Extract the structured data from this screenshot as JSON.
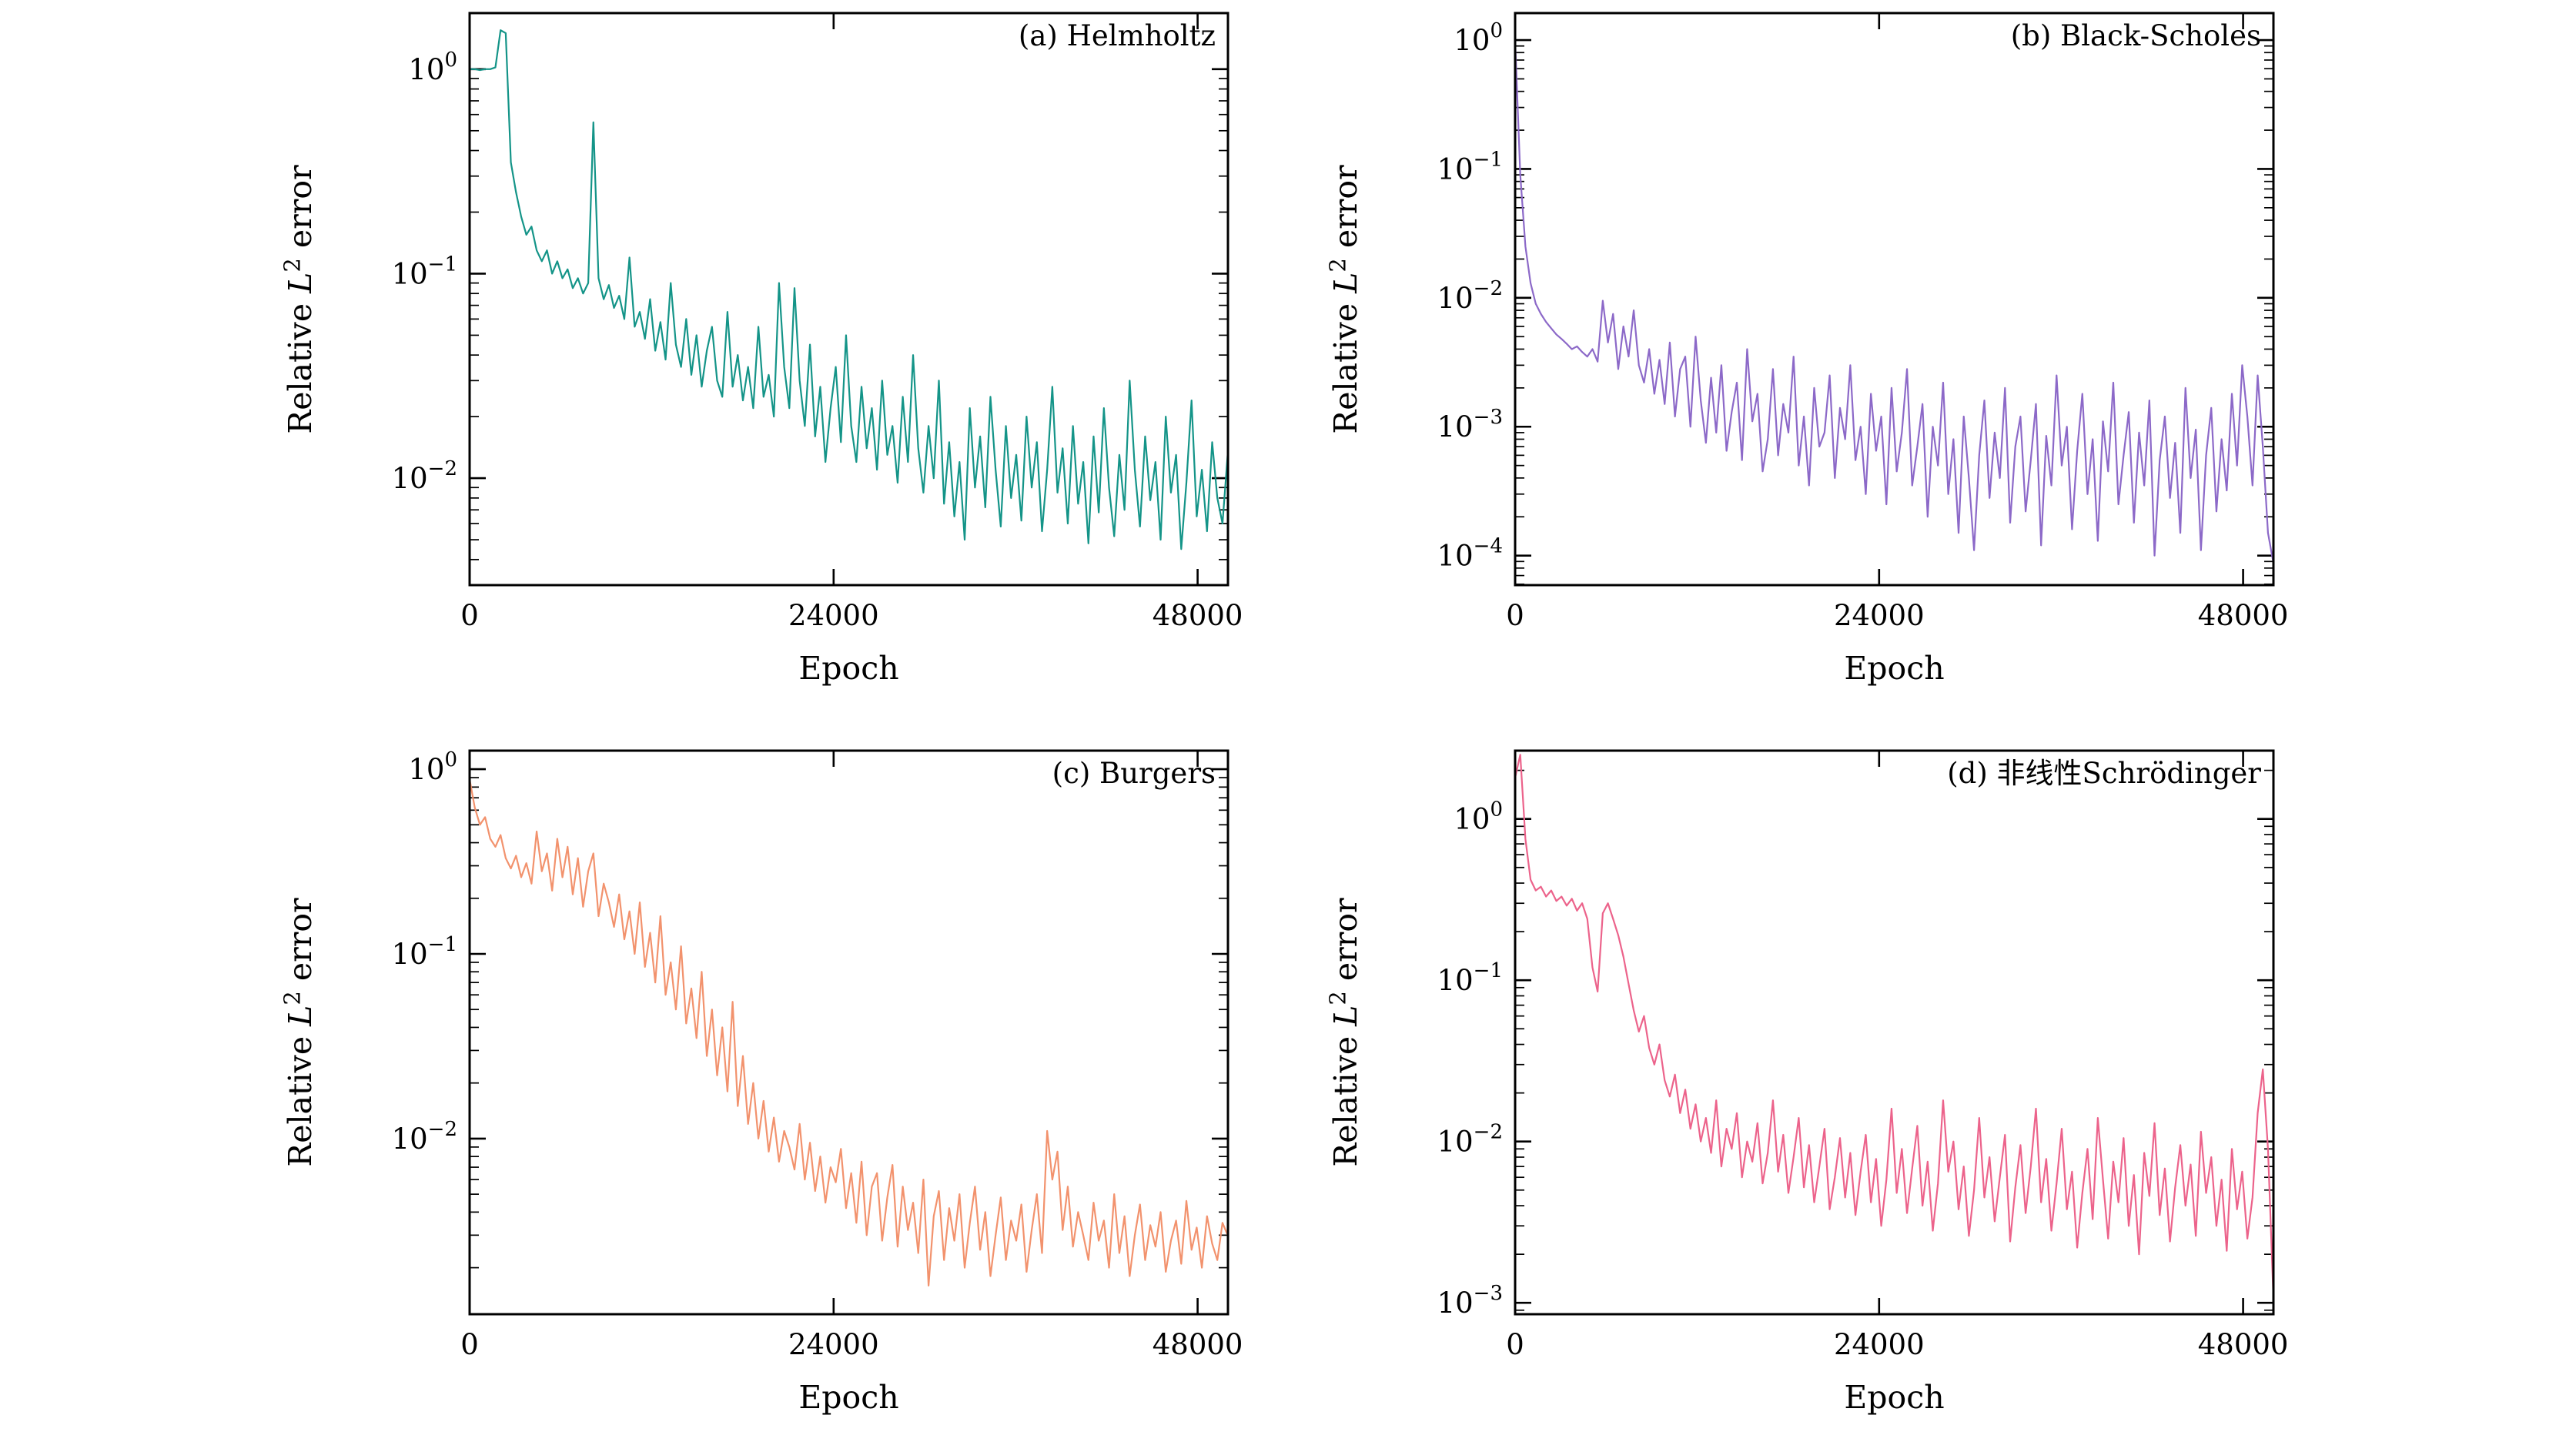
{
  "page": {
    "background": "#ffffff"
  },
  "shared": {
    "xlabel": "Epoch",
    "ylabel": {
      "pre": "Relative ",
      "sym": "L",
      "exp": "2",
      "post": " error"
    },
    "axis_color": "#000000"
  },
  "chart_data": [
    {
      "type": "line",
      "title": "(a) Helmholtz",
      "color": "#149488",
      "xlabel": "Epoch",
      "ylabel": "Relative L² error",
      "grid": false,
      "legend": false,
      "yscale": "log",
      "xlim": [
        0,
        50000
      ],
      "ylim": [
        0.003,
        1.88
      ],
      "x_ticks": [
        0,
        24000,
        48000
      ],
      "x_tick_labels": [
        "0",
        "24000",
        "48000"
      ],
      "y_tick_exponents": [
        0,
        -1,
        -2
      ],
      "x_start": 0,
      "x_step": 340,
      "values": [
        1.0,
        1.0,
        0.99,
        1.0,
        1.0,
        1.02,
        1.55,
        1.5,
        0.35,
        0.25,
        0.19,
        0.155,
        0.17,
        0.13,
        0.115,
        0.13,
        0.1,
        0.115,
        0.095,
        0.105,
        0.085,
        0.095,
        0.08,
        0.09,
        0.55,
        0.095,
        0.075,
        0.088,
        0.068,
        0.078,
        0.06,
        0.12,
        0.055,
        0.065,
        0.048,
        0.075,
        0.042,
        0.058,
        0.038,
        0.09,
        0.045,
        0.035,
        0.06,
        0.032,
        0.05,
        0.028,
        0.042,
        0.055,
        0.03,
        0.025,
        0.065,
        0.028,
        0.04,
        0.024,
        0.035,
        0.022,
        0.055,
        0.025,
        0.032,
        0.02,
        0.09,
        0.035,
        0.022,
        0.085,
        0.03,
        0.018,
        0.045,
        0.016,
        0.028,
        0.012,
        0.022,
        0.035,
        0.015,
        0.05,
        0.018,
        0.012,
        0.028,
        0.014,
        0.022,
        0.011,
        0.03,
        0.013,
        0.018,
        0.0095,
        0.025,
        0.012,
        0.04,
        0.014,
        0.0085,
        0.018,
        0.01,
        0.03,
        0.0075,
        0.015,
        0.0065,
        0.012,
        0.005,
        0.022,
        0.009,
        0.016,
        0.0072,
        0.025,
        0.011,
        0.0058,
        0.018,
        0.008,
        0.013,
        0.0062,
        0.02,
        0.009,
        0.015,
        0.0055,
        0.011,
        0.028,
        0.0085,
        0.014,
        0.006,
        0.018,
        0.0075,
        0.012,
        0.0048,
        0.016,
        0.0068,
        0.022,
        0.009,
        0.0052,
        0.013,
        0.007,
        0.03,
        0.011,
        0.0058,
        0.016,
        0.0078,
        0.012,
        0.005,
        0.02,
        0.0085,
        0.013,
        0.0045,
        0.0095,
        0.024,
        0.0065,
        0.011,
        0.0055,
        0.015,
        0.008,
        0.006,
        0.013
      ]
    },
    {
      "type": "line",
      "title": "(b) Black-Scholes",
      "color": "#8c69c8",
      "xlabel": "Epoch",
      "ylabel": "Relative L² error",
      "grid": false,
      "legend": false,
      "yscale": "log",
      "xlim": [
        0,
        50000
      ],
      "ylim": [
        5.9e-05,
        1.62
      ],
      "x_ticks": [
        0,
        24000,
        48000
      ],
      "x_tick_labels": [
        "0",
        "24000",
        "48000"
      ],
      "y_tick_exponents": [
        0,
        -1,
        -2,
        -3,
        -4
      ],
      "x_start": 0,
      "x_step": 340,
      "values": [
        1.0,
        0.09,
        0.025,
        0.013,
        0.009,
        0.0075,
        0.0065,
        0.0058,
        0.0052,
        0.0048,
        0.0044,
        0.004,
        0.0042,
        0.0038,
        0.0035,
        0.004,
        0.0032,
        0.0095,
        0.0045,
        0.0075,
        0.0028,
        0.006,
        0.0035,
        0.008,
        0.003,
        0.0022,
        0.004,
        0.0018,
        0.0033,
        0.0015,
        0.0045,
        0.0012,
        0.0028,
        0.0035,
        0.001,
        0.005,
        0.0016,
        0.00075,
        0.0024,
        0.0009,
        0.003,
        0.00065,
        0.0013,
        0.0022,
        0.00055,
        0.004,
        0.0011,
        0.0018,
        0.00045,
        0.0008,
        0.0028,
        0.0006,
        0.0015,
        0.0009,
        0.0035,
        0.0005,
        0.0012,
        0.00035,
        0.002,
        0.0007,
        0.0009,
        0.0025,
        0.0004,
        0.0014,
        0.0008,
        0.003,
        0.00055,
        0.001,
        0.0003,
        0.0018,
        0.00065,
        0.0012,
        0.00025,
        0.002,
        0.00045,
        0.0009,
        0.0028,
        0.00035,
        0.0007,
        0.0015,
        0.0002,
        0.001,
        0.0005,
        0.0022,
        0.0003,
        0.0008,
        0.00015,
        0.0012,
        0.0004,
        0.00011,
        0.0006,
        0.0016,
        0.00028,
        0.0009,
        0.0004,
        0.002,
        0.00018,
        0.0007,
        0.0012,
        0.00022,
        0.00055,
        0.0015,
        0.00012,
        0.00085,
        0.00035,
        0.0025,
        0.0005,
        0.001,
        0.00016,
        0.00065,
        0.0018,
        0.0003,
        0.0008,
        0.00013,
        0.0011,
        0.00045,
        0.0022,
        0.00025,
        0.0006,
        0.0013,
        0.00018,
        0.0009,
        0.00035,
        0.0016,
        0.0001,
        0.00055,
        0.0012,
        0.00028,
        0.00075,
        0.00015,
        0.002,
        0.0004,
        0.00095,
        0.00011,
        0.0006,
        0.0014,
        0.00022,
        0.0008,
        0.00032,
        0.0018,
        0.0005,
        0.003,
        0.0012,
        0.00035,
        0.0025,
        0.0007,
        0.00015,
        9e-05
      ]
    },
    {
      "type": "line",
      "title": "(c) Burgers",
      "color": "#f2926d",
      "xlabel": "Epoch",
      "ylabel": "Relative L² error",
      "grid": false,
      "legend": false,
      "yscale": "log",
      "xlim": [
        0,
        50000
      ],
      "ylim": [
        0.00112,
        1.26
      ],
      "x_ticks": [
        0,
        24000,
        48000
      ],
      "x_tick_labels": [
        "0",
        "24000",
        "48000"
      ],
      "y_tick_exponents": [
        0,
        -1,
        -2
      ],
      "x_start": 0,
      "x_step": 340,
      "values": [
        0.88,
        0.62,
        0.5,
        0.55,
        0.42,
        0.38,
        0.44,
        0.33,
        0.29,
        0.34,
        0.26,
        0.31,
        0.24,
        0.46,
        0.28,
        0.35,
        0.22,
        0.42,
        0.26,
        0.38,
        0.21,
        0.33,
        0.18,
        0.28,
        0.35,
        0.16,
        0.24,
        0.19,
        0.14,
        0.21,
        0.12,
        0.17,
        0.1,
        0.19,
        0.085,
        0.13,
        0.07,
        0.16,
        0.06,
        0.09,
        0.05,
        0.11,
        0.042,
        0.065,
        0.035,
        0.08,
        0.028,
        0.05,
        0.022,
        0.04,
        0.018,
        0.055,
        0.015,
        0.028,
        0.012,
        0.02,
        0.01,
        0.016,
        0.0085,
        0.013,
        0.0075,
        0.011,
        0.009,
        0.0068,
        0.012,
        0.006,
        0.0095,
        0.0052,
        0.008,
        0.0045,
        0.007,
        0.0058,
        0.0088,
        0.0042,
        0.0065,
        0.0035,
        0.0075,
        0.003,
        0.0055,
        0.0065,
        0.0028,
        0.0048,
        0.0072,
        0.0026,
        0.0055,
        0.0032,
        0.0045,
        0.0024,
        0.006,
        0.0016,
        0.0038,
        0.0052,
        0.0022,
        0.0042,
        0.0028,
        0.005,
        0.002,
        0.0035,
        0.0055,
        0.0025,
        0.004,
        0.0018,
        0.003,
        0.0048,
        0.0022,
        0.0036,
        0.0028,
        0.0044,
        0.0019,
        0.0032,
        0.005,
        0.0024,
        0.011,
        0.006,
        0.0085,
        0.0032,
        0.0055,
        0.0026,
        0.004,
        0.003,
        0.0022,
        0.0045,
        0.0028,
        0.0036,
        0.002,
        0.005,
        0.0024,
        0.0038,
        0.0018,
        0.003,
        0.0044,
        0.0022,
        0.0034,
        0.0026,
        0.004,
        0.0019,
        0.0028,
        0.0036,
        0.0021,
        0.0046,
        0.0025,
        0.0033,
        0.002,
        0.0038,
        0.0027,
        0.0022,
        0.0035,
        0.003
      ]
    },
    {
      "type": "line",
      "title": "(d) 非线性Schrödinger",
      "color": "#ec638b",
      "xlabel": "Epoch",
      "ylabel": "Relative L² error",
      "grid": false,
      "legend": false,
      "yscale": "log",
      "xlim": [
        0,
        50000
      ],
      "ylim": [
        0.00085,
        2.65
      ],
      "x_ticks": [
        0,
        24000,
        48000
      ],
      "x_tick_labels": [
        "0",
        "24000",
        "48000"
      ],
      "y_tick_exponents": [
        0,
        -1,
        -2,
        -3
      ],
      "x_start": 0,
      "x_step": 340,
      "values": [
        1.8,
        2.5,
        0.75,
        0.42,
        0.36,
        0.38,
        0.33,
        0.36,
        0.31,
        0.33,
        0.29,
        0.32,
        0.27,
        0.3,
        0.24,
        0.12,
        0.085,
        0.26,
        0.3,
        0.24,
        0.19,
        0.14,
        0.095,
        0.065,
        0.048,
        0.06,
        0.038,
        0.03,
        0.04,
        0.024,
        0.019,
        0.026,
        0.015,
        0.021,
        0.012,
        0.017,
        0.01,
        0.014,
        0.0085,
        0.018,
        0.007,
        0.012,
        0.009,
        0.015,
        0.006,
        0.01,
        0.0075,
        0.013,
        0.0055,
        0.0085,
        0.018,
        0.0065,
        0.011,
        0.0048,
        0.008,
        0.014,
        0.0052,
        0.0095,
        0.0042,
        0.007,
        0.012,
        0.0038,
        0.006,
        0.0105,
        0.0045,
        0.0085,
        0.0035,
        0.0065,
        0.011,
        0.0042,
        0.0078,
        0.003,
        0.0058,
        0.016,
        0.0048,
        0.009,
        0.0036,
        0.0068,
        0.0125,
        0.004,
        0.0075,
        0.0028,
        0.0055,
        0.018,
        0.0065,
        0.01,
        0.0038,
        0.007,
        0.0026,
        0.005,
        0.014,
        0.0045,
        0.008,
        0.0032,
        0.006,
        0.011,
        0.0024,
        0.0052,
        0.0095,
        0.0036,
        0.007,
        0.016,
        0.0042,
        0.0078,
        0.0028,
        0.0055,
        0.012,
        0.0038,
        0.0065,
        0.0022,
        0.0048,
        0.009,
        0.0033,
        0.014,
        0.0058,
        0.0025,
        0.0075,
        0.0042,
        0.0105,
        0.003,
        0.0062,
        0.002,
        0.0085,
        0.0046,
        0.013,
        0.0035,
        0.0068,
        0.0024,
        0.0052,
        0.0095,
        0.004,
        0.0072,
        0.0026,
        0.0115,
        0.0048,
        0.008,
        0.003,
        0.0058,
        0.0021,
        0.009,
        0.0038,
        0.0065,
        0.0025,
        0.0045,
        0.015,
        0.028,
        0.009,
        0.0012
      ]
    }
  ]
}
